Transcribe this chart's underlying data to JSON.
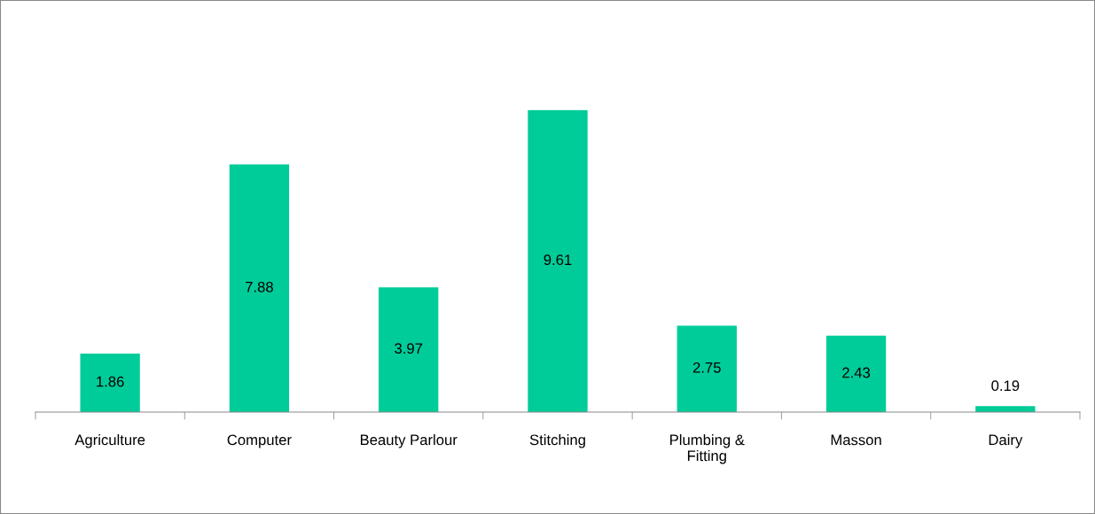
{
  "chart_data": {
    "type": "bar",
    "categories": [
      "Agriculture",
      "Computer",
      "Beauty Parlour",
      "Stitching",
      "Plumbing &\nFitting",
      "Masson",
      "Dairy"
    ],
    "values": [
      1.86,
      7.88,
      3.97,
      9.61,
      2.75,
      2.43,
      0.19
    ],
    "color": "#00cc99",
    "data_labels": true,
    "grid": false,
    "legend": false
  }
}
